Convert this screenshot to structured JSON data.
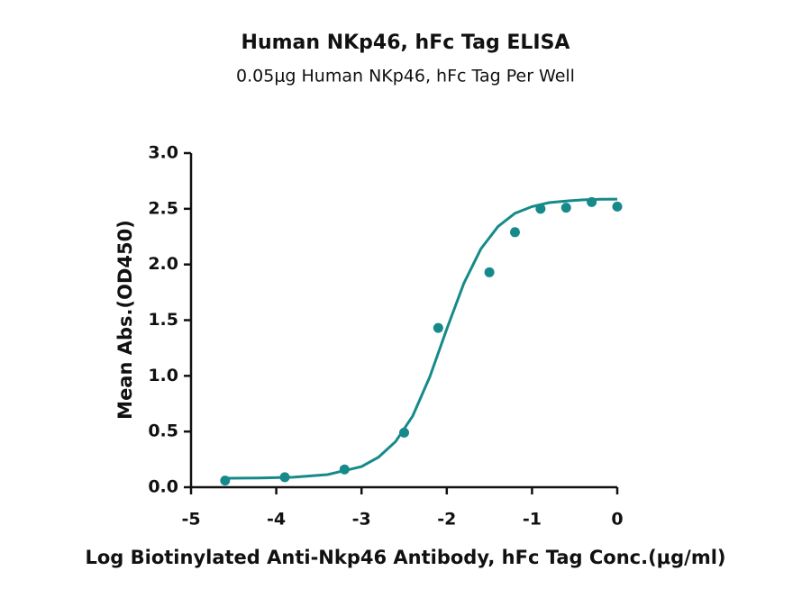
{
  "chart_data": {
    "type": "scatter",
    "title": "Human NKp46, hFc Tag ELISA",
    "subtitle": "0.05μg Human NKp46, hFc Tag Per Well",
    "x_label": "Log Biotinylated Anti-Nkp46 Antibody, hFc Tag Conc.(μg/ml)",
    "y_label": "Mean Abs.(OD450)",
    "color": "#168a8a",
    "x": [
      -4.6,
      -3.9,
      -3.2,
      -2.5,
      -2.1,
      -1.5,
      -1.2,
      -0.9,
      -0.6,
      -0.3,
      0
    ],
    "values": [
      0.06,
      0.09,
      0.16,
      0.49,
      1.43,
      1.93,
      2.29,
      2.5,
      2.51,
      2.56,
      2.52
    ],
    "curve": {
      "x": [
        -4.6,
        -4.2,
        -3.8,
        -3.4,
        -3.0,
        -2.8,
        -2.6,
        -2.4,
        -2.2,
        -2.0,
        -1.8,
        -1.6,
        -1.4,
        -1.2,
        -1.0,
        -0.8,
        -0.6,
        -0.4,
        -0.2,
        0
      ],
      "values": [
        0.08,
        0.083,
        0.09,
        0.113,
        0.185,
        0.27,
        0.41,
        0.64,
        0.99,
        1.42,
        1.83,
        2.14,
        2.34,
        2.46,
        2.52,
        2.555,
        2.57,
        2.58,
        2.585,
        2.587
      ]
    },
    "xlim": [
      -5,
      0
    ],
    "ylim": [
      0,
      3
    ],
    "xticks": [
      -5,
      -4,
      -3,
      -2,
      -1,
      0
    ],
    "yticks": [
      {
        "value": 0,
        "label": "0.0"
      },
      0.5,
      {
        "value": 1,
        "label": "1.0"
      },
      1.5,
      {
        "value": 2,
        "label": "2.0"
      },
      2.5,
      {
        "value": 3,
        "label": "3.0"
      }
    ]
  }
}
